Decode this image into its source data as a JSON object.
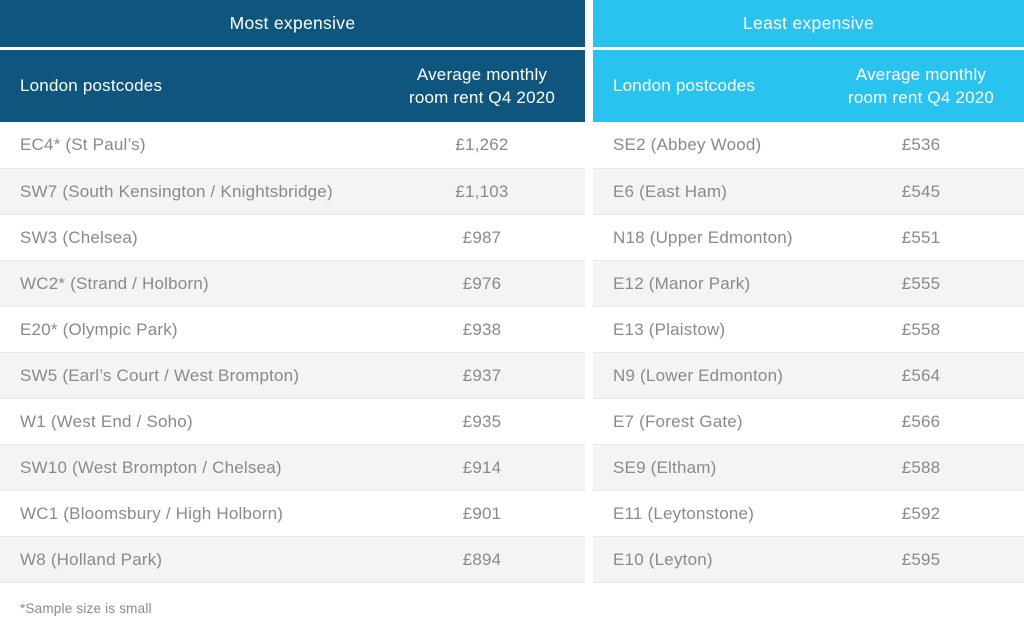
{
  "footnote": "*Sample size is small",
  "colors": {
    "dark_blue": "#0F567F",
    "cyan": "#29C3F0",
    "alt_row": "#F4F4F4",
    "row_border": "#E8E8E8",
    "row_text": "#8A8A8A",
    "header_text": "#FFFFFF"
  },
  "chart_data": [
    {
      "type": "table",
      "title": "Most expensive",
      "header": {
        "postcode_col": "London postcodes",
        "value_col_lines": [
          "Average monthly",
          "room rent Q4 2020"
        ]
      },
      "rows": [
        {
          "postcode": "EC4* (St Paul’s)",
          "rent": "£1,262"
        },
        {
          "postcode": "SW7 (South Kensington / Knightsbridge)",
          "rent": "£1,103"
        },
        {
          "postcode": "SW3 (Chelsea)",
          "rent": "£987"
        },
        {
          "postcode": "WC2* (Strand / Holborn)",
          "rent": "£976"
        },
        {
          "postcode": "E20* (Olympic Park)",
          "rent": "£938"
        },
        {
          "postcode": "SW5 (Earl’s Court / West Brompton)",
          "rent": "£937"
        },
        {
          "postcode": "W1 (West End / Soho)",
          "rent": "£935"
        },
        {
          "postcode": "SW10 (West Brompton / Chelsea)",
          "rent": "£914"
        },
        {
          "postcode": "WC1 (Bloomsbury / High Holborn)",
          "rent": "£901"
        },
        {
          "postcode": "W8 (Holland Park)",
          "rent": "£894"
        }
      ]
    },
    {
      "type": "table",
      "title": "Least expensive",
      "header": {
        "postcode_col": "London postcodes",
        "value_col_lines": [
          "Average monthly",
          "room rent Q4 2020"
        ]
      },
      "rows": [
        {
          "postcode": "SE2 (Abbey Wood)",
          "rent": "£536"
        },
        {
          "postcode": "E6 (East Ham)",
          "rent": "£545"
        },
        {
          "postcode": "N18 (Upper Edmonton)",
          "rent": "£551"
        },
        {
          "postcode": "E12 (Manor Park)",
          "rent": "£555"
        },
        {
          "postcode": "E13 (Plaistow)",
          "rent": "£558"
        },
        {
          "postcode": "N9 (Lower Edmonton)",
          "rent": "£564"
        },
        {
          "postcode": "E7 (Forest Gate)",
          "rent": "£566"
        },
        {
          "postcode": "SE9 (Eltham)",
          "rent": "£588"
        },
        {
          "postcode": "E11 (Leytonstone)",
          "rent": "£592"
        },
        {
          "postcode": "E10 (Leyton)",
          "rent": "£595"
        }
      ]
    }
  ]
}
